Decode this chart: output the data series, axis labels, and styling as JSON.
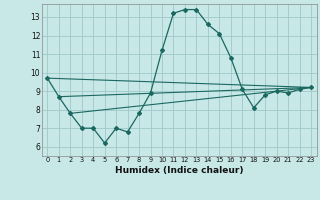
{
  "title": "",
  "xlabel": "Humidex (Indice chaleur)",
  "xlim": [
    -0.5,
    23.5
  ],
  "ylim": [
    5.5,
    13.7
  ],
  "yticks": [
    6,
    7,
    8,
    9,
    10,
    11,
    12,
    13
  ],
  "xticks": [
    0,
    1,
    2,
    3,
    4,
    5,
    6,
    7,
    8,
    9,
    10,
    11,
    12,
    13,
    14,
    15,
    16,
    17,
    18,
    19,
    20,
    21,
    22,
    23
  ],
  "bg_color": "#c8e8e8",
  "grid_color": "#a0c8c8",
  "line_color": "#1a6860",
  "xlabel_bg": "#2a5858",
  "main_line": {
    "x": [
      0,
      1,
      2,
      3,
      4,
      5,
      6,
      7,
      8,
      9,
      10,
      11,
      12,
      13,
      14,
      15,
      16,
      17,
      18,
      19,
      20,
      21,
      22,
      23
    ],
    "y": [
      9.7,
      8.7,
      7.8,
      7.0,
      7.0,
      6.2,
      7.0,
      6.8,
      7.8,
      8.9,
      11.2,
      13.2,
      13.4,
      13.4,
      12.6,
      12.1,
      10.8,
      9.1,
      8.1,
      8.8,
      9.0,
      8.9,
      9.1,
      9.2
    ]
  },
  "trend_lines": [
    {
      "x": [
        0,
        23
      ],
      "y": [
        9.7,
        9.2
      ]
    },
    {
      "x": [
        1,
        23
      ],
      "y": [
        8.7,
        9.2
      ]
    },
    {
      "x": [
        2,
        23
      ],
      "y": [
        7.8,
        9.2
      ]
    }
  ]
}
